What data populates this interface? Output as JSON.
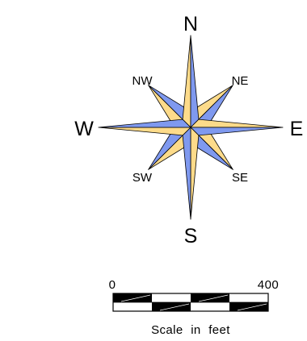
{
  "compass": {
    "colors": {
      "blue": "#7f99ef",
      "yellow": "#fddb8a",
      "outline": "#000000"
    },
    "labels": {
      "north": "N",
      "northeast": "NE",
      "east": "E",
      "southeast": "SE",
      "south": "S",
      "southwest": "SW",
      "west": "W",
      "northwest": "NW"
    }
  },
  "scale_bar": {
    "start_label": "0",
    "end_label": "400",
    "caption": "Scale in feet"
  }
}
